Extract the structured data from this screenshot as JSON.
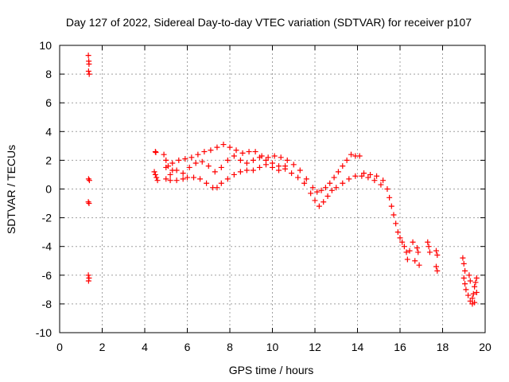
{
  "chart_data": {
    "type": "scatter",
    "title": "Day 127 of 2022, Sidereal Day-to-day VTEC variation (SDTVAR) for receiver p107",
    "xlabel": "GPS time / hours",
    "ylabel": "SDTVAR / TECUs",
    "xlim": [
      0,
      20
    ],
    "ylim": [
      -10,
      10
    ],
    "x_ticks": [
      0,
      2,
      4,
      6,
      8,
      10,
      12,
      14,
      16,
      18,
      20
    ],
    "y_ticks": [
      -10,
      -8,
      -6,
      -4,
      -2,
      0,
      2,
      4,
      6,
      8,
      10
    ],
    "grid": true,
    "marker": "+",
    "colors": {
      "series": "#ff0000",
      "grid": "#a0a0a0",
      "axis": "#000000"
    },
    "series": [
      {
        "name": "SDTVAR",
        "points": [
          [
            1.35,
            9.3
          ],
          [
            1.37,
            8.9
          ],
          [
            1.38,
            8.7
          ],
          [
            1.36,
            8.2
          ],
          [
            1.39,
            8.0
          ],
          [
            1.36,
            0.7
          ],
          [
            1.4,
            0.6
          ],
          [
            1.35,
            -0.9
          ],
          [
            1.38,
            -1.0
          ],
          [
            1.35,
            -6.0
          ],
          [
            1.38,
            -6.2
          ],
          [
            1.36,
            -6.4
          ],
          [
            4.5,
            2.6
          ],
          [
            4.52,
            2.55
          ],
          [
            4.45,
            1.2
          ],
          [
            4.5,
            1.0
          ],
          [
            4.55,
            0.8
          ],
          [
            4.6,
            0.6
          ],
          [
            4.9,
            2.4
          ],
          [
            5.0,
            2.0
          ],
          [
            5.1,
            1.6
          ],
          [
            5.2,
            1.0
          ],
          [
            5.3,
            1.3
          ],
          [
            5.0,
            0.7
          ],
          [
            5.2,
            0.6
          ],
          [
            5.5,
            0.6
          ],
          [
            5.8,
            0.7
          ],
          [
            6.0,
            0.8
          ],
          [
            6.3,
            0.8
          ],
          [
            6.6,
            0.7
          ],
          [
            6.9,
            0.4
          ],
          [
            7.2,
            0.1
          ],
          [
            7.4,
            0.1
          ],
          [
            7.6,
            0.4
          ],
          [
            7.9,
            0.7
          ],
          [
            8.2,
            1.0
          ],
          [
            8.5,
            1.2
          ],
          [
            8.8,
            1.3
          ],
          [
            9.1,
            1.3
          ],
          [
            9.4,
            1.5
          ],
          [
            9.7,
            1.7
          ],
          [
            10.0,
            1.8
          ],
          [
            10.3,
            1.6
          ],
          [
            10.6,
            1.4
          ],
          [
            10.9,
            1.1
          ],
          [
            11.2,
            0.8
          ],
          [
            11.5,
            0.4
          ],
          [
            11.8,
            -0.3
          ],
          [
            12.0,
            -0.8
          ],
          [
            12.2,
            -1.2
          ],
          [
            12.4,
            -0.9
          ],
          [
            12.6,
            -0.5
          ],
          [
            12.8,
            -0.1
          ],
          [
            13.0,
            0.1
          ],
          [
            13.3,
            0.4
          ],
          [
            13.6,
            0.7
          ],
          [
            13.9,
            0.9
          ],
          [
            14.2,
            0.9
          ],
          [
            14.5,
            0.8
          ],
          [
            14.8,
            0.6
          ],
          [
            15.1,
            0.3
          ],
          [
            5.0,
            1.5
          ],
          [
            5.3,
            1.8
          ],
          [
            5.6,
            2.0
          ],
          [
            5.9,
            2.1
          ],
          [
            6.2,
            2.2
          ],
          [
            6.5,
            2.4
          ],
          [
            6.8,
            2.6
          ],
          [
            7.1,
            2.7
          ],
          [
            7.4,
            2.9
          ],
          [
            7.7,
            3.1
          ],
          [
            8.0,
            2.9
          ],
          [
            8.3,
            2.7
          ],
          [
            8.6,
            2.5
          ],
          [
            8.9,
            2.6
          ],
          [
            9.2,
            2.6
          ],
          [
            9.5,
            2.3
          ],
          [
            9.8,
            2.2
          ],
          [
            10.1,
            2.3
          ],
          [
            10.4,
            2.2
          ],
          [
            10.7,
            2.0
          ],
          [
            11.0,
            1.7
          ],
          [
            11.3,
            1.3
          ],
          [
            11.6,
            0.7
          ],
          [
            11.9,
            0.1
          ],
          [
            12.1,
            -0.2
          ],
          [
            12.3,
            -0.1
          ],
          [
            12.5,
            0.1
          ],
          [
            12.7,
            0.4
          ],
          [
            12.9,
            0.8
          ],
          [
            13.1,
            1.2
          ],
          [
            13.3,
            1.6
          ],
          [
            13.5,
            2.0
          ],
          [
            13.7,
            2.4
          ],
          [
            13.9,
            2.3
          ],
          [
            14.1,
            2.3
          ],
          [
            5.5,
            1.3
          ],
          [
            5.8,
            1.1
          ],
          [
            6.1,
            1.5
          ],
          [
            6.4,
            1.8
          ],
          [
            6.7,
            1.9
          ],
          [
            7.0,
            1.6
          ],
          [
            7.3,
            1.2
          ],
          [
            7.6,
            1.5
          ],
          [
            7.9,
            2.0
          ],
          [
            8.2,
            2.3
          ],
          [
            8.5,
            2.0
          ],
          [
            8.8,
            1.8
          ],
          [
            9.1,
            2.0
          ],
          [
            9.4,
            2.2
          ],
          [
            9.7,
            2.0
          ],
          [
            10.0,
            1.5
          ],
          [
            10.3,
            1.3
          ],
          [
            10.6,
            1.6
          ],
          [
            14.3,
            1.1
          ],
          [
            14.6,
            1.0
          ],
          [
            14.9,
            0.9
          ],
          [
            15.2,
            0.6
          ],
          [
            15.4,
            0.0
          ],
          [
            15.5,
            -0.6
          ],
          [
            15.6,
            -1.2
          ],
          [
            15.7,
            -1.8
          ],
          [
            15.8,
            -2.4
          ],
          [
            15.9,
            -3.0
          ],
          [
            16.0,
            -3.4
          ],
          [
            16.1,
            -3.7
          ],
          [
            16.2,
            -4.0
          ],
          [
            16.3,
            -4.4
          ],
          [
            16.35,
            -4.9
          ],
          [
            16.45,
            -4.3
          ],
          [
            16.6,
            -3.7
          ],
          [
            16.8,
            -4.1
          ],
          [
            16.7,
            -5.0
          ],
          [
            16.9,
            -5.3
          ],
          [
            16.85,
            -4.4
          ],
          [
            17.3,
            -3.7
          ],
          [
            17.35,
            -4.0
          ],
          [
            17.4,
            -4.4
          ],
          [
            17.7,
            -4.3
          ],
          [
            17.75,
            -4.6
          ],
          [
            17.7,
            -5.4
          ],
          [
            17.75,
            -5.7
          ],
          [
            18.95,
            -4.8
          ],
          [
            19.0,
            -5.2
          ],
          [
            19.05,
            -5.7
          ],
          [
            19.0,
            -6.2
          ],
          [
            19.05,
            -6.6
          ],
          [
            19.1,
            -7.0
          ],
          [
            19.2,
            -7.4
          ],
          [
            19.3,
            -7.8
          ],
          [
            19.4,
            -8.0
          ],
          [
            19.45,
            -7.3
          ],
          [
            19.5,
            -6.8
          ],
          [
            19.55,
            -6.5
          ],
          [
            19.3,
            -6.4
          ],
          [
            19.25,
            -6.0
          ],
          [
            19.4,
            -7.6
          ],
          [
            19.5,
            -7.9
          ],
          [
            19.6,
            -7.2
          ],
          [
            19.6,
            -6.2
          ]
        ]
      }
    ]
  }
}
